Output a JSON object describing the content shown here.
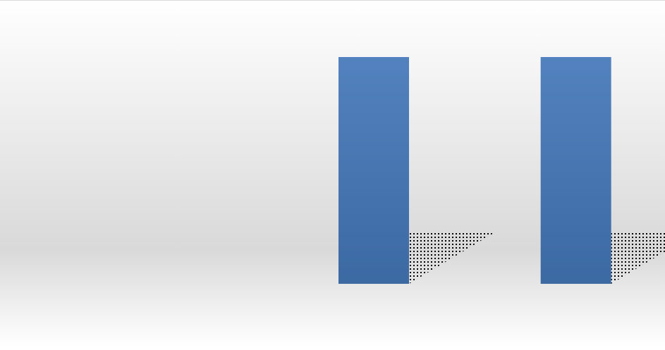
{
  "chart_data": {
    "type": "bar",
    "categories": [
      "",
      "",
      ""
    ],
    "series": [
      {
        "values": [
          0,
          1,
          1
        ]
      }
    ],
    "ylim": [
      0,
      1
    ],
    "grid": false,
    "legend": "none",
    "colors": {
      "bar_top": "#5282bf",
      "bar_bottom": "#3c69a2",
      "shadow_pattern": "#000000",
      "background_edge": "#ffffff",
      "background_mid": "#d9d9d9",
      "frame_border": "#d9d9d9"
    }
  }
}
